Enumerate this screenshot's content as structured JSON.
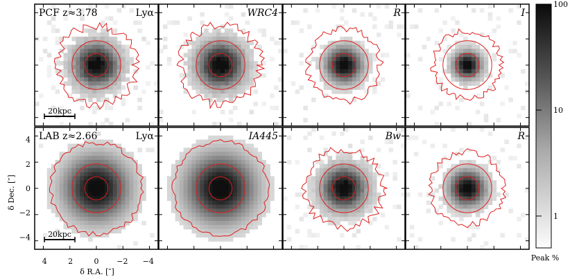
{
  "rows": [
    {
      "panels": [
        {
          "label": "PCF z≈3.78",
          "right_label": "Lyα",
          "scalebar": "20kpc",
          "blob": 0.55,
          "noise": 0.75
        },
        {
          "label": "",
          "right_label": "WRC4",
          "blob": 0.58,
          "noise": 0.6
        },
        {
          "label": "",
          "right_label": "R",
          "blob": 0.45,
          "noise": 0.45
        },
        {
          "label": "",
          "right_label": "I",
          "blob": 0.35,
          "noise": 0.5
        }
      ]
    },
    {
      "panels": [
        {
          "label": "LAB z≈2.66",
          "right_label": "Lyα",
          "scalebar": "20kpc",
          "blob": 0.8,
          "noise": 0.15
        },
        {
          "label": "",
          "right_label": "IA445",
          "blob": 0.85,
          "noise": 0.05
        },
        {
          "label": "",
          "right_label": "Bw",
          "blob": 0.55,
          "noise": 0.55
        },
        {
          "label": "",
          "right_label": "R",
          "blob": 0.45,
          "noise": 0.4
        }
      ]
    }
  ],
  "axes": {
    "y_label": "δ Dec. [″]",
    "x_label": "δ R.A. [″]",
    "y_ticks": [
      "4",
      "2",
      "0",
      "−2",
      "−4"
    ],
    "x_ticks": [
      "4",
      "2",
      "0",
      "−2",
      "−4"
    ]
  },
  "colorbar": {
    "ticks": [
      "100",
      "10",
      "1"
    ],
    "label": "Peak %"
  },
  "colors": {
    "contour": "#e02020",
    "frame": "#000000"
  }
}
